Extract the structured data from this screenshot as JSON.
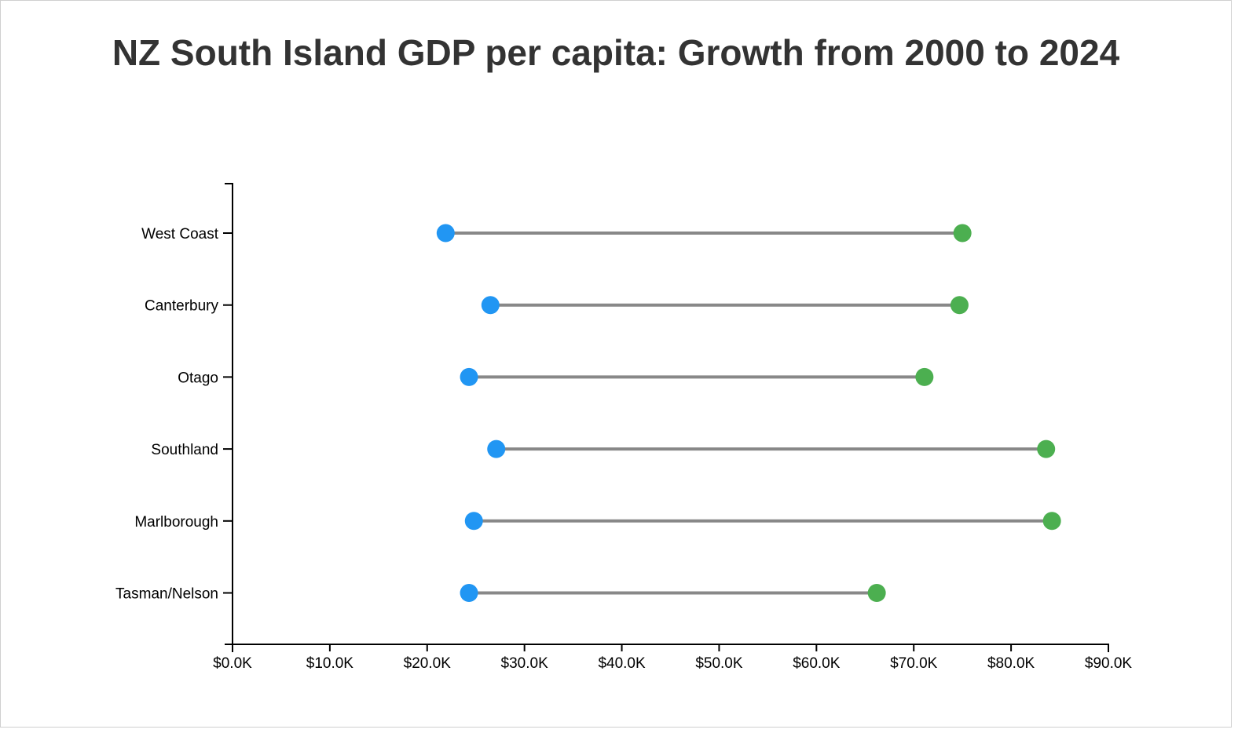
{
  "chart_data": {
    "type": "dumbbell",
    "title": "NZ South Island GDP per capita: Growth from 2000 to 2024",
    "xlabel": "",
    "ylabel": "",
    "xlim": [
      0,
      90000
    ],
    "x_ticks": [
      {
        "value": 0,
        "label": "$0.0K"
      },
      {
        "value": 10000,
        "label": "$10.0K"
      },
      {
        "value": 20000,
        "label": "$20.0K"
      },
      {
        "value": 30000,
        "label": "$30.0K"
      },
      {
        "value": 40000,
        "label": "$40.0K"
      },
      {
        "value": 50000,
        "label": "$50.0K"
      },
      {
        "value": 60000,
        "label": "$60.0K"
      },
      {
        "value": 70000,
        "label": "$70.0K"
      },
      {
        "value": 80000,
        "label": "$80.0K"
      },
      {
        "value": 90000,
        "label": "$90.0K"
      }
    ],
    "categories": [
      "West Coast",
      "Canterbury",
      "Otago",
      "Southland",
      "Marlborough",
      "Tasman/Nelson"
    ],
    "series": [
      {
        "values": [
          21900,
          26500,
          24300,
          27100,
          24800,
          24300
        ],
        "color": "#2196f3"
      },
      {
        "values": [
          75000,
          74700,
          71100,
          83600,
          84200,
          66200
        ],
        "color": "#4caf50"
      }
    ],
    "connector_color": "#888888",
    "grid": false,
    "legend": "none"
  }
}
